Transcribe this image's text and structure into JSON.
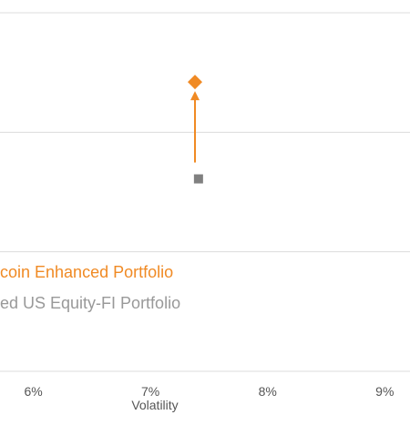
{
  "chart_data": {
    "type": "scatter",
    "xlabel": "Volatility",
    "x_tick_labels": [
      "6%",
      "7%",
      "8%",
      "9%"
    ],
    "x_ticks": [
      6,
      7,
      8,
      9
    ],
    "xlim": [
      5.7,
      9.2
    ],
    "ylim": [
      0,
      3
    ],
    "y_gridlines": [
      0,
      1,
      2,
      3
    ],
    "grid": true,
    "series": [
      {
        "name": "Bitcoin Enhanced Portfolio",
        "color": "#F08A24",
        "marker": "diamond",
        "x": 7.38,
        "y": 2.42
      },
      {
        "name": "Blended US Equity-FI Portfolio",
        "color": "#808080",
        "marker": "square",
        "x": 7.41,
        "y": 1.61
      }
    ],
    "arrow": {
      "from_series": 1,
      "to_series": 0,
      "color": "#F08A24"
    },
    "legend": {
      "placement": "lower-left",
      "entries": [
        "coin Enhanced Portfolio",
        "ed US Equity-FI Portfolio"
      ],
      "colors": [
        "#F08A24",
        "#999999"
      ]
    }
  }
}
